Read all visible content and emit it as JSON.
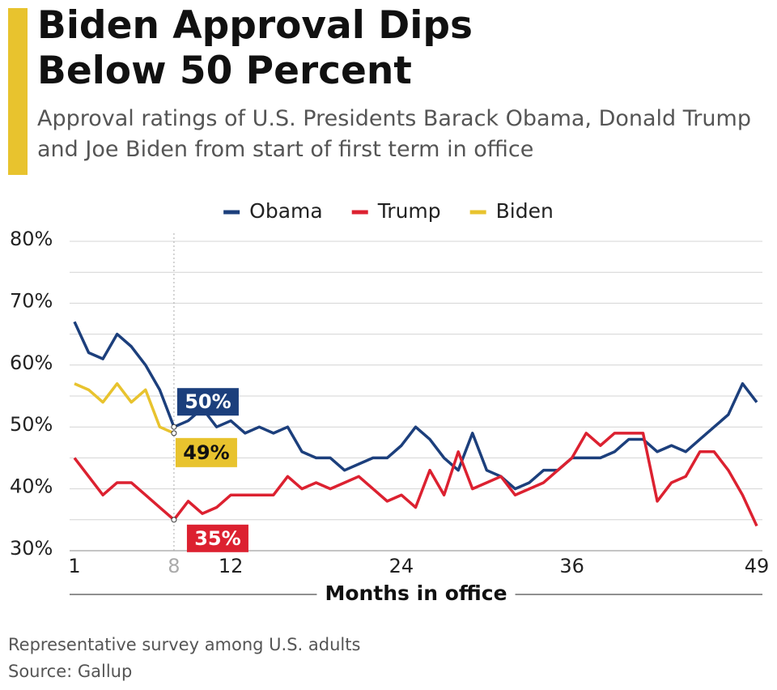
{
  "chart_data": {
    "type": "line",
    "title": "Biden Approval Dips Below 50 Percent",
    "subtitle": "Approval ratings of U.S. Presidents Barack Obama, Donald Trump and Joe Biden from start of first term in office",
    "x_label": "Months in office",
    "notes": [
      "Representative survey among U.S. adults",
      "Source: Gallup"
    ],
    "x": [
      1,
      2,
      3,
      4,
      5,
      6,
      7,
      8,
      9,
      10,
      11,
      12,
      13,
      14,
      15,
      16,
      17,
      18,
      19,
      20,
      21,
      22,
      23,
      24,
      25,
      26,
      27,
      28,
      29,
      30,
      31,
      32,
      33,
      34,
      35,
      36,
      37,
      38,
      39,
      40,
      41,
      42,
      43,
      44,
      45,
      46,
      47,
      48,
      49
    ],
    "xlim": [
      1,
      49
    ],
    "xticks": [
      1,
      8,
      12,
      24,
      36,
      49
    ],
    "reference_x": 8,
    "ylim": [
      30,
      80
    ],
    "yticks": [
      {
        "value": 30,
        "label": "30%"
      },
      {
        "value": 40,
        "label": "40%"
      },
      {
        "value": 50,
        "label": "50%"
      },
      {
        "value": 60,
        "label": "60%"
      },
      {
        "value": 70,
        "label": "70%"
      },
      {
        "value": 80,
        "label": "80%"
      }
    ],
    "minor_yticks": [
      35,
      45,
      55,
      65,
      75
    ],
    "grid": true,
    "legend": "top",
    "series": [
      {
        "name": "Obama",
        "color": "#1c3f7c",
        "values": [
          67,
          62,
          61,
          65,
          63,
          60,
          56,
          50,
          51,
          53,
          50,
          51,
          49,
          50,
          49,
          50,
          46,
          45,
          45,
          43,
          44,
          45,
          45,
          47,
          50,
          48,
          45,
          43,
          49,
          43,
          42,
          40,
          41,
          43,
          43,
          45,
          45,
          45,
          46,
          48,
          48,
          46,
          47,
          46,
          48,
          50,
          52,
          57,
          54
        ],
        "value_labels": [
          null,
          null,
          null,
          null,
          null,
          null,
          null,
          "50%",
          null,
          null,
          null,
          null,
          null,
          null,
          null,
          null,
          null,
          null,
          null,
          null,
          null,
          null,
          null,
          null,
          null,
          null,
          null,
          null,
          null,
          null,
          null,
          null,
          null,
          null,
          null,
          null,
          null,
          null,
          null,
          null,
          null,
          null,
          null,
          null,
          null,
          null,
          null,
          null,
          null
        ]
      },
      {
        "name": "Trump",
        "color": "#dc2130",
        "values": [
          45,
          42,
          39,
          41,
          41,
          39,
          37,
          35,
          38,
          36,
          37,
          39,
          39,
          39,
          39,
          42,
          40,
          41,
          40,
          41,
          42,
          40,
          38,
          39,
          37,
          43,
          39,
          46,
          40,
          41,
          42,
          39,
          40,
          41,
          43,
          45,
          49,
          47,
          49,
          49,
          49,
          38,
          41,
          42,
          46,
          46,
          43,
          39,
          34
        ],
        "value_labels": [
          null,
          null,
          null,
          null,
          null,
          null,
          null,
          "35%",
          null,
          null,
          null,
          null,
          null,
          null,
          null,
          null,
          null,
          null,
          null,
          null,
          null,
          null,
          null,
          null,
          null,
          null,
          null,
          null,
          null,
          null,
          null,
          null,
          null,
          null,
          null,
          null,
          null,
          null,
          null,
          null,
          null,
          null,
          null,
          null,
          null,
          null,
          null,
          null,
          null
        ]
      },
      {
        "name": "Biden",
        "color": "#e8c32e",
        "values": [
          57,
          56,
          54,
          57,
          54,
          56,
          50,
          49,
          null,
          null,
          null,
          null,
          null,
          null,
          null,
          null,
          null,
          null,
          null,
          null,
          null,
          null,
          null,
          null,
          null,
          null,
          null,
          null,
          null,
          null,
          null,
          null,
          null,
          null,
          null,
          null,
          null,
          null,
          null,
          null,
          null,
          null,
          null,
          null,
          null,
          null,
          null,
          null,
          null
        ],
        "value_labels": [
          null,
          null,
          null,
          null,
          null,
          null,
          null,
          "49%",
          null,
          null,
          null,
          null,
          null,
          null,
          null,
          null,
          null,
          null,
          null,
          null,
          null,
          null,
          null,
          null,
          null,
          null,
          null,
          null,
          null,
          null,
          null,
          null,
          null,
          null,
          null,
          null,
          null,
          null,
          null,
          null,
          null,
          null,
          null,
          null,
          null,
          null,
          null,
          null,
          null
        ]
      }
    ]
  }
}
